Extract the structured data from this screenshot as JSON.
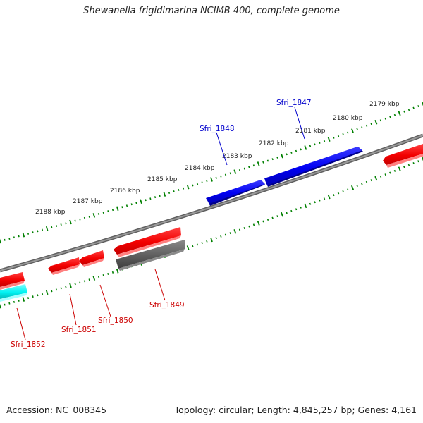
{
  "title": "Shewanella frigidimarina NCIMB 400, complete genome",
  "footer": {
    "accession": "Accession: NC_008345",
    "summary": "Topology: circular; Length: 4,845,257 bp; Genes: 4,161"
  },
  "colors": {
    "forward_cds": "#0000ff",
    "reverse_cds": "#ff0000",
    "reverse_other": "#606060",
    "reverse_rna": "#00ffff",
    "backbone": "#808080",
    "ticks": "#008000",
    "forward_label": "#0000cc",
    "reverse_label": "#cc0000"
  },
  "scale_labels": [
    "2179 kbp",
    "2180 kbp",
    "2181 kbp",
    "2182 kbp",
    "2183 kbp",
    "2184 kbp",
    "2185 kbp",
    "2186 kbp",
    "2187 kbp",
    "2188 kbp"
  ],
  "genes": [
    {
      "label": "Sfri_1847",
      "strand": "forward",
      "kind": "cds"
    },
    {
      "label": "Sfri_1848",
      "strand": "forward",
      "kind": "cds"
    },
    {
      "label": "Sfri_1849",
      "strand": "reverse",
      "kind": "other"
    },
    {
      "label": "Sfri_1850",
      "strand": "reverse",
      "kind": "cds"
    },
    {
      "label": "Sfri_1851",
      "strand": "reverse",
      "kind": "cds"
    },
    {
      "label": "Sfri_1852",
      "strand": "reverse",
      "kind": "rna"
    }
  ]
}
